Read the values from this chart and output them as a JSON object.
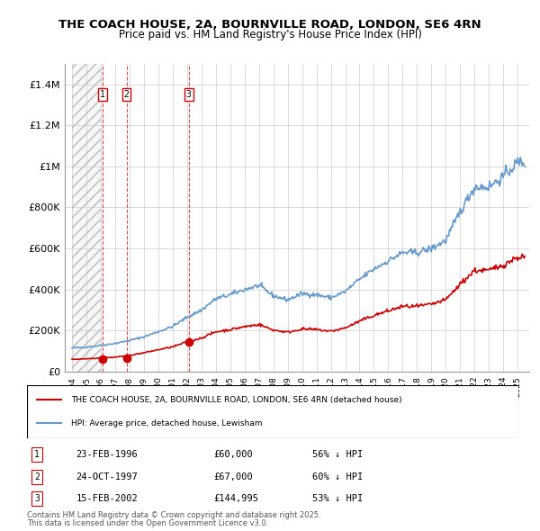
{
  "title": "THE COACH HOUSE, 2A, BOURNVILLE ROAD, LONDON, SE6 4RN",
  "subtitle": "Price paid vs. HM Land Registry's House Price Index (HPI)",
  "hpi_label": "HPI: Average price, detached house, Lewisham",
  "property_label": "THE COACH HOUSE, 2A, BOURNVILLE ROAD, LONDON, SE6 4RN (detached house)",
  "footer1": "Contains HM Land Registry data © Crown copyright and database right 2025.",
  "footer2": "This data is licensed under the Open Government Licence v3.0.",
  "sale_dates": [
    "1996-02-23",
    "1997-10-24",
    "2002-02-15"
  ],
  "sale_prices": [
    60000,
    67000,
    144995
  ],
  "sale_labels": [
    "1",
    "2",
    "3"
  ],
  "sale_table": [
    {
      "num": "1",
      "date": "23-FEB-1996",
      "price": "£60,000",
      "pct": "56% ↓ HPI"
    },
    {
      "num": "2",
      "date": "24-OCT-1997",
      "price": "£67,000",
      "pct": "60% ↓ HPI"
    },
    {
      "num": "3",
      "date": "15-FEB-2002",
      "price": "£144,995",
      "pct": "53% ↓ HPI"
    }
  ],
  "hpi_color": "#6699cc",
  "property_color": "#cc0000",
  "sale_marker_color": "#cc0000",
  "vline_color": "#cc0000",
  "ylim": [
    0,
    1500000
  ],
  "yticks": [
    0,
    200000,
    400000,
    600000,
    800000,
    1000000,
    1200000,
    1400000
  ],
  "ytick_labels": [
    "£0",
    "£200K",
    "£400K",
    "£600K",
    "£800K",
    "£1M",
    "£1.2M",
    "£1.4M"
  ],
  "hpi_years": [
    1994,
    1995,
    1996,
    1997,
    1998,
    1999,
    2000,
    2001,
    2002,
    2003,
    2004,
    2005,
    2006,
    2007,
    2008,
    2009,
    2010,
    2011,
    2012,
    2013,
    2014,
    2015,
    2016,
    2017,
    2018,
    2019,
    2020,
    2021,
    2022,
    2023,
    2024,
    2025
  ],
  "hpi_values": [
    115000,
    120000,
    128000,
    138000,
    152000,
    170000,
    195000,
    220000,
    265000,
    300000,
    355000,
    375000,
    400000,
    420000,
    370000,
    350000,
    380000,
    375000,
    360000,
    390000,
    450000,
    500000,
    540000,
    580000,
    580000,
    600000,
    640000,
    780000,
    900000,
    900000,
    950000,
    1020000
  ],
  "property_years": [
    1994,
    1995,
    1996,
    1997,
    1998,
    1999,
    2000,
    2001,
    2002,
    2003,
    2004,
    2005,
    2006,
    2007,
    2008,
    2009,
    2010,
    2011,
    2012,
    2013,
    2014,
    2015,
    2016,
    2017,
    2018,
    2019,
    2020,
    2021,
    2022,
    2023,
    2024,
    2025
  ],
  "property_values": [
    60000,
    63000,
    67000,
    71000,
    80000,
    92000,
    107000,
    121000,
    145000,
    164000,
    194000,
    205000,
    219000,
    230000,
    203000,
    192000,
    208000,
    205000,
    197000,
    213000,
    246000,
    274000,
    296000,
    318000,
    318000,
    328000,
    350000,
    427000,
    493000,
    493000,
    520000,
    558000
  ],
  "bg_hatch_color": "#dddddd",
  "grid_color": "#cccccc"
}
